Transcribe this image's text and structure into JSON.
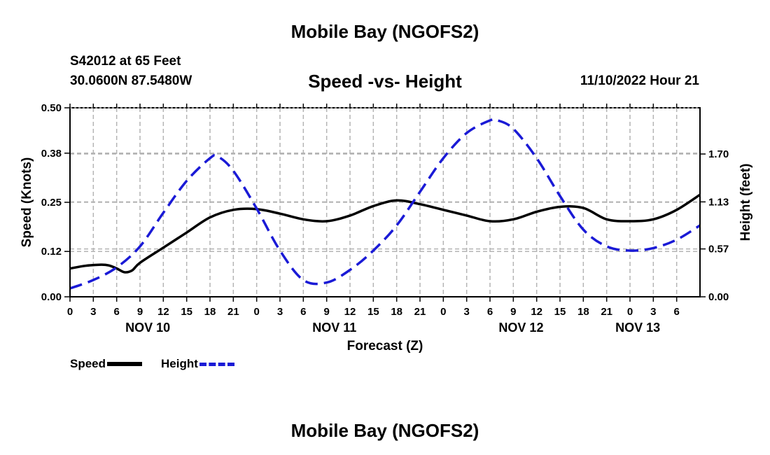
{
  "header": {
    "title": "Mobile Bay (NGOFS2)",
    "station": "S42012 at 65 Feet",
    "coords": "30.0600N  87.5480W",
    "subtitle": "Speed -vs- Height",
    "datetime": "11/10/2022 Hour 21"
  },
  "footer": {
    "title": "Mobile Bay (NGOFS2)"
  },
  "legend": {
    "speed_label": "Speed",
    "height_label": "Height"
  },
  "colors": {
    "speed": "#000000",
    "height": "#1a1ad6",
    "grid": "#b4b4b4"
  },
  "chart_data": {
    "type": "line",
    "xlabel": "Forecast (Z)",
    "ylabel": "Speed (Knots)",
    "ylabel_right": "Height (feet)",
    "x_hours_range": [
      0,
      81
    ],
    "x_tick_labels": [
      "0",
      "3",
      "6",
      "9",
      "12",
      "15",
      "18",
      "21",
      "0",
      "3",
      "6",
      "9",
      "12",
      "15",
      "18",
      "21",
      "0",
      "3",
      "6",
      "9",
      "12",
      "15",
      "18",
      "21",
      "0",
      "3",
      "6"
    ],
    "date_labels": [
      {
        "label": "NOV 10",
        "hour": 10
      },
      {
        "label": "NOV 11",
        "hour": 34
      },
      {
        "label": "NOV 12",
        "hour": 58
      },
      {
        "label": "NOV 13",
        "hour": 73
      }
    ],
    "ylim": [
      0,
      0.5
    ],
    "y_ticks": [
      0.0,
      0.12,
      0.25,
      0.38,
      0.5
    ],
    "y_tick_labels": [
      "0.00",
      "0.12",
      "0.25",
      "0.38",
      "0.50"
    ],
    "ylim_right": [
      0,
      2.25
    ],
    "y_ticks_right": [
      0.0,
      0.57,
      1.13,
      1.7
    ],
    "y_tick_labels_right": [
      "0.00",
      "0.57",
      "1.13",
      "1.70"
    ],
    "series": [
      {
        "name": "Speed",
        "axis": "left",
        "style": "solid",
        "x": [
          0,
          2,
          4,
          5,
          6,
          7,
          8,
          9,
          12,
          15,
          18,
          21,
          24,
          27,
          30,
          33,
          36,
          39,
          42,
          45,
          48,
          51,
          54,
          57,
          60,
          63,
          66,
          69,
          72,
          75,
          78,
          81
        ],
        "values": [
          0.075,
          0.082,
          0.085,
          0.083,
          0.075,
          0.065,
          0.07,
          0.09,
          0.13,
          0.17,
          0.21,
          0.23,
          0.232,
          0.22,
          0.205,
          0.2,
          0.215,
          0.24,
          0.255,
          0.245,
          0.23,
          0.215,
          0.2,
          0.205,
          0.225,
          0.238,
          0.235,
          0.205,
          0.2,
          0.205,
          0.23,
          0.27
        ]
      },
      {
        "name": "Height",
        "axis": "right",
        "style": "dashed",
        "x": [
          0,
          3,
          6,
          9,
          12,
          15,
          18,
          19,
          21,
          24,
          27,
          30,
          33,
          36,
          39,
          42,
          45,
          48,
          51,
          54,
          55,
          57,
          60,
          63,
          66,
          69,
          72,
          75,
          78,
          81
        ],
        "values": [
          0.1,
          0.2,
          0.35,
          0.6,
          1.0,
          1.38,
          1.65,
          1.67,
          1.5,
          1.05,
          0.55,
          0.2,
          0.17,
          0.32,
          0.55,
          0.85,
          1.25,
          1.65,
          1.95,
          2.1,
          2.1,
          2.0,
          1.65,
          1.2,
          0.8,
          0.6,
          0.55,
          0.58,
          0.68,
          0.85
        ]
      }
    ]
  }
}
